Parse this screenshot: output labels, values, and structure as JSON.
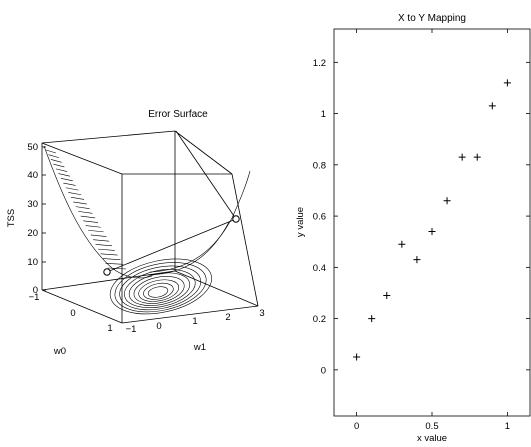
{
  "chart_data": [
    {
      "type": "surface-3d",
      "title": "Error Surface",
      "xlabel": "w0",
      "ylabel": "w1",
      "zlabel": "TSS",
      "xlim": [
        -1,
        1
      ],
      "ylim": [
        -1,
        3
      ],
      "zlim": [
        0,
        50
      ],
      "x_ticks": [
        "−1",
        "0",
        "1"
      ],
      "y_ticks": [
        "−1",
        "0",
        "1",
        "2",
        "3"
      ],
      "z_ticks": [
        "0",
        "10",
        "20",
        "30",
        "40",
        "50"
      ],
      "markers": [
        {
          "w0": -0.9,
          "w1": -0.8,
          "tss": 6
        },
        {
          "w0": 0.9,
          "w1": 2.8,
          "tss": 20
        }
      ],
      "grid": false
    },
    {
      "type": "scatter",
      "title": "X to Y Mapping",
      "xlabel": "x value",
      "ylabel": "y value",
      "xlim": [
        -0.15,
        1.15
      ],
      "ylim": [
        -0.18,
        1.33
      ],
      "x_ticks": [
        "0",
        "0.5",
        "1"
      ],
      "x_tick_values": [
        0,
        0.5,
        1
      ],
      "y_ticks": [
        "0",
        "0.2",
        "0.4",
        "0.6",
        "0.8",
        "1",
        "1.2"
      ],
      "y_tick_values": [
        0,
        0.2,
        0.4,
        0.6,
        0.8,
        1.0,
        1.2
      ],
      "marker": "+",
      "x": [
        0.0,
        0.1,
        0.2,
        0.3,
        0.4,
        0.5,
        0.6,
        0.7,
        0.8,
        0.9,
        1.0
      ],
      "y": [
        0.05,
        0.2,
        0.29,
        0.49,
        0.43,
        0.54,
        0.66,
        0.83,
        0.83,
        1.03,
        1.12
      ],
      "grid": false
    }
  ]
}
